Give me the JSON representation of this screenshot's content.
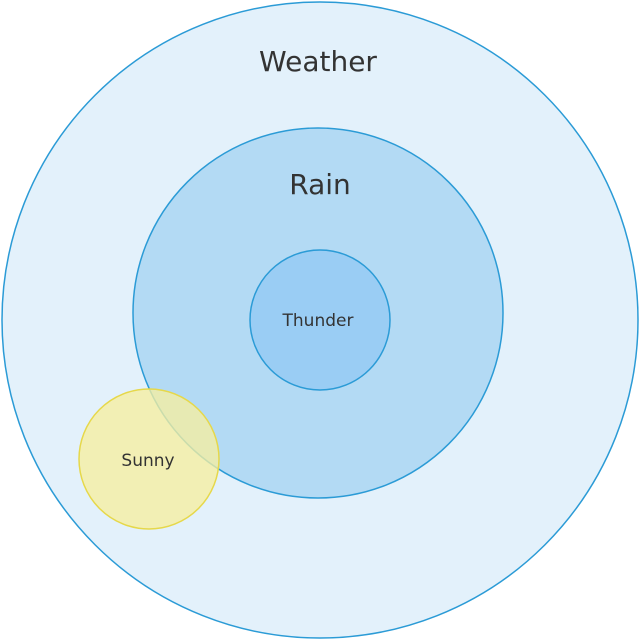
{
  "diagram": {
    "type": "euler-diagram",
    "sets": {
      "weather": {
        "label": "Weather",
        "fill": "#e3f1fb",
        "stroke": "#2b9bd6"
      },
      "rain": {
        "label": "Rain",
        "fill": "#b3daf4",
        "stroke": "#2b9bd6"
      },
      "thunder": {
        "label": "Thunder",
        "fill": "#9acdf4",
        "stroke": "#2b9bd6"
      },
      "sunny": {
        "label": "Sunny",
        "fill": "#f6eea0",
        "stroke": "#e6d84a"
      }
    }
  }
}
